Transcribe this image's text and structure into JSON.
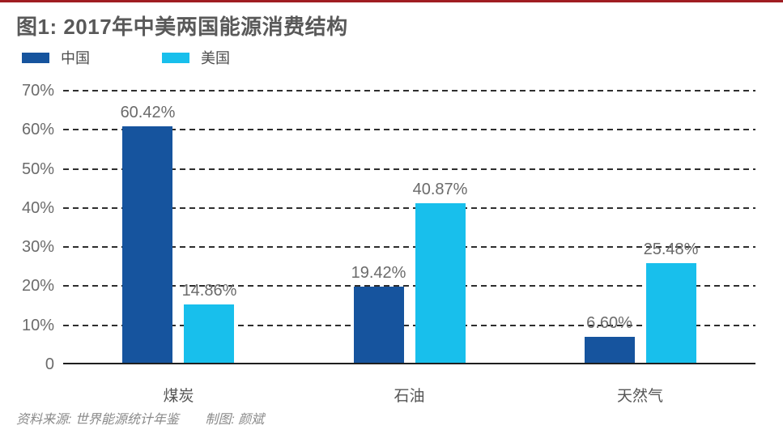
{
  "page": {
    "accent_line_color": "#a01d22",
    "background_color": "#ffffff"
  },
  "chart_data": {
    "type": "bar",
    "title": "图1: 2017年中美两国能源消费结构",
    "categories": [
      "煤炭",
      "石油",
      "天然气"
    ],
    "series": [
      {
        "name": "中国",
        "color": "#16549e",
        "values": [
          60.42,
          19.42,
          6.6
        ],
        "labels": [
          "60.42%",
          "19.42%",
          "6.60%"
        ]
      },
      {
        "name": "美国",
        "color": "#18bfec",
        "values": [
          14.86,
          40.87,
          25.48
        ],
        "labels": [
          "14.86%",
          "40.87%",
          "25.48%"
        ]
      }
    ],
    "y_axis": {
      "max": 70,
      "ticks": [
        {
          "value": 70,
          "label": "70%"
        },
        {
          "value": 60,
          "label": "60%"
        },
        {
          "value": 50,
          "label": "50%"
        },
        {
          "value": 40,
          "label": "40%"
        },
        {
          "value": 30,
          "label": "30%"
        },
        {
          "value": 20,
          "label": "20%"
        },
        {
          "value": 10,
          "label": "10%"
        },
        {
          "value": 0,
          "label": "0"
        }
      ]
    },
    "grid": "horizontal-dashed",
    "legend_position": "top-left"
  },
  "footer": {
    "source": "资料来源: 世界能源统计年鉴",
    "credit": "制图: 颜斌"
  }
}
